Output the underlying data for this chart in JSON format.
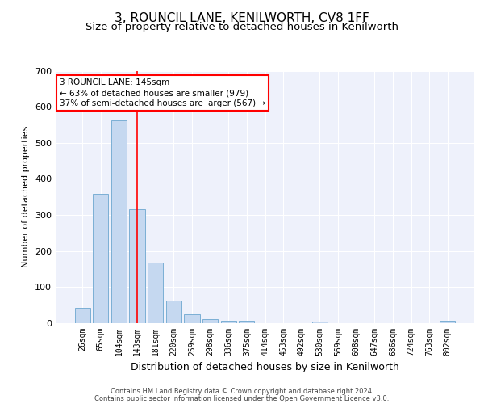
{
  "title": "3, ROUNCIL LANE, KENILWORTH, CV8 1FF",
  "subtitle": "Size of property relative to detached houses in Kenilworth",
  "xlabel": "Distribution of detached houses by size in Kenilworth",
  "ylabel": "Number of detached properties",
  "footer_line1": "Contains HM Land Registry data © Crown copyright and database right 2024.",
  "footer_line2": "Contains public sector information licensed under the Open Government Licence v3.0.",
  "categories": [
    "26sqm",
    "65sqm",
    "104sqm",
    "143sqm",
    "181sqm",
    "220sqm",
    "259sqm",
    "298sqm",
    "336sqm",
    "375sqm",
    "414sqm",
    "453sqm",
    "492sqm",
    "530sqm",
    "569sqm",
    "608sqm",
    "647sqm",
    "686sqm",
    "724sqm",
    "763sqm",
    "802sqm"
  ],
  "values": [
    42,
    358,
    562,
    315,
    168,
    63,
    25,
    11,
    6,
    6,
    0,
    0,
    0,
    5,
    0,
    0,
    0,
    0,
    0,
    0,
    6
  ],
  "bar_color": "#c5d8f0",
  "bar_edge_color": "#7bafd4",
  "vline_x": 3,
  "vline_color": "red",
  "annotation_text": "3 ROUNCIL LANE: 145sqm\n← 63% of detached houses are smaller (979)\n37% of semi-detached houses are larger (567) →",
  "annotation_box_color": "white",
  "annotation_box_edge_color": "red",
  "ylim": [
    0,
    700
  ],
  "yticks": [
    0,
    100,
    200,
    300,
    400,
    500,
    600,
    700
  ],
  "plot_bg_color": "#eef1fb",
  "grid_color": "white",
  "title_fontsize": 11,
  "subtitle_fontsize": 9.5,
  "xlabel_fontsize": 9,
  "ylabel_fontsize": 8,
  "tick_fontsize": 7,
  "footer_fontsize": 6
}
